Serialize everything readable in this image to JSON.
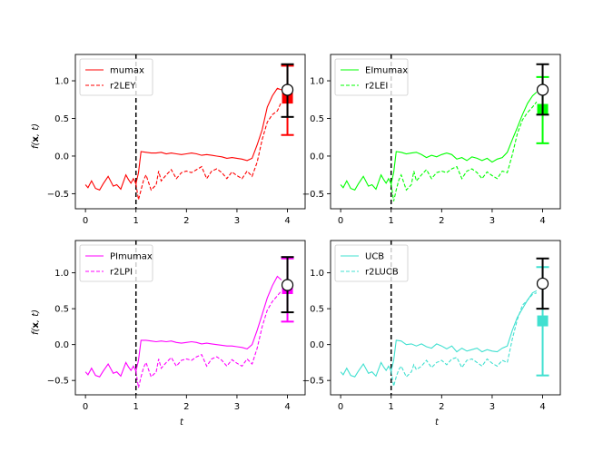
{
  "figure": {
    "ylabel_prefix": "f(",
    "ylabel_bold": "x",
    "ylabel_suffix": ", t)",
    "xlabel": "t"
  },
  "chart_data": [
    {
      "type": "line",
      "color": "#ff0000",
      "xlim": [
        -0.2,
        4.35
      ],
      "ylim": [
        -0.7,
        1.35
      ],
      "xticks": [
        0,
        1,
        2,
        3,
        4
      ],
      "yticks": [
        -0.5,
        0.0,
        0.5,
        1.0
      ],
      "ytick_labels": [
        "−0.5",
        "0.0",
        "0.5",
        "1.0"
      ],
      "vline_x": 1,
      "legend": [
        "mumax",
        "r2LEY"
      ],
      "series": [
        {
          "name": "mumax",
          "style": "solid",
          "x": [
            0,
            0.05,
            0.12,
            0.2,
            0.28,
            0.35,
            0.45,
            0.55,
            0.62,
            0.7,
            0.8,
            0.85,
            0.9,
            0.95,
            1.0,
            1.05,
            1.1,
            1.2,
            1.3,
            1.4,
            1.5,
            1.6,
            1.7,
            1.8,
            1.9,
            2.0,
            2.1,
            2.2,
            2.3,
            2.4,
            2.5,
            2.6,
            2.7,
            2.8,
            2.9,
            3.0,
            3.1,
            3.2,
            3.3,
            3.4,
            3.5,
            3.6,
            3.7,
            3.8,
            3.88
          ],
          "y": [
            -0.38,
            -0.42,
            -0.33,
            -0.43,
            -0.45,
            -0.37,
            -0.27,
            -0.4,
            -0.38,
            -0.44,
            -0.25,
            -0.31,
            -0.36,
            -0.3,
            -0.37,
            -0.22,
            0.06,
            0.05,
            0.04,
            0.04,
            0.05,
            0.03,
            0.04,
            0.03,
            0.02,
            0.03,
            0.04,
            0.03,
            0.01,
            0.02,
            0.01,
            0.0,
            -0.01,
            -0.03,
            -0.02,
            -0.03,
            -0.04,
            -0.06,
            -0.03,
            0.15,
            0.35,
            0.65,
            0.8,
            0.9,
            0.88
          ]
        },
        {
          "name": "r2LEY",
          "style": "dashed",
          "x": [
            1.0,
            1.05,
            1.1,
            1.15,
            1.2,
            1.3,
            1.4,
            1.45,
            1.5,
            1.6,
            1.7,
            1.8,
            1.9,
            2.0,
            2.1,
            2.2,
            2.3,
            2.4,
            2.5,
            2.6,
            2.7,
            2.8,
            2.9,
            3.0,
            3.1,
            3.2,
            3.3,
            3.4,
            3.5,
            3.6,
            3.7,
            3.8,
            3.88
          ],
          "y": [
            -0.37,
            -0.58,
            -0.45,
            -0.32,
            -0.25,
            -0.45,
            -0.38,
            -0.2,
            -0.33,
            -0.25,
            -0.18,
            -0.3,
            -0.22,
            -0.2,
            -0.22,
            -0.18,
            -0.14,
            -0.3,
            -0.2,
            -0.17,
            -0.22,
            -0.3,
            -0.21,
            -0.26,
            -0.3,
            -0.2,
            -0.27,
            -0.08,
            0.22,
            0.45,
            0.55,
            0.6,
            0.72
          ]
        }
      ],
      "errorbar_true": {
        "x": 4,
        "y": 0.88,
        "lower": 0.52,
        "upper": 1.22
      },
      "errorbar_pred": {
        "x": 4,
        "y": 0.77,
        "lower": 0.28,
        "upper": 1.2
      }
    },
    {
      "type": "line",
      "color": "#00ff00",
      "xlim": [
        -0.2,
        4.35
      ],
      "ylim": [
        -0.7,
        1.35
      ],
      "xticks": [
        0,
        1,
        2,
        3,
        4
      ],
      "yticks": [
        -0.5,
        0.0,
        0.5,
        1.0
      ],
      "ytick_labels": [
        "−0.5",
        "0.0",
        "0.5",
        "1.0"
      ],
      "vline_x": 1,
      "legend": [
        "EImumax",
        "r2LEI"
      ],
      "series": [
        {
          "name": "EImumax",
          "style": "solid",
          "x": [
            0,
            0.05,
            0.12,
            0.2,
            0.28,
            0.35,
            0.45,
            0.55,
            0.62,
            0.7,
            0.8,
            0.85,
            0.9,
            0.95,
            1.0,
            1.05,
            1.1,
            1.2,
            1.3,
            1.4,
            1.5,
            1.6,
            1.7,
            1.8,
            1.9,
            2.0,
            2.1,
            2.2,
            2.3,
            2.4,
            2.5,
            2.6,
            2.7,
            2.8,
            2.9,
            3.0,
            3.1,
            3.2,
            3.3,
            3.4,
            3.5,
            3.6,
            3.7,
            3.8,
            3.88
          ],
          "y": [
            -0.38,
            -0.42,
            -0.33,
            -0.43,
            -0.45,
            -0.37,
            -0.27,
            -0.4,
            -0.38,
            -0.44,
            -0.25,
            -0.31,
            -0.36,
            -0.3,
            -0.37,
            -0.22,
            0.06,
            0.05,
            0.03,
            0.04,
            0.05,
            0.02,
            -0.02,
            0.01,
            -0.01,
            0.02,
            0.04,
            0.02,
            -0.04,
            -0.02,
            -0.06,
            -0.01,
            -0.03,
            -0.06,
            -0.03,
            -0.08,
            -0.04,
            -0.02,
            0.05,
            0.22,
            0.38,
            0.55,
            0.7,
            0.8,
            0.85
          ]
        },
        {
          "name": "r2LEI",
          "style": "dashed",
          "x": [
            1.0,
            1.05,
            1.1,
            1.15,
            1.2,
            1.3,
            1.4,
            1.45,
            1.5,
            1.6,
            1.7,
            1.8,
            1.9,
            2.0,
            2.1,
            2.2,
            2.3,
            2.4,
            2.5,
            2.6,
            2.7,
            2.8,
            2.9,
            3.0,
            3.1,
            3.2,
            3.3,
            3.4,
            3.5,
            3.6,
            3.7,
            3.8,
            3.88
          ],
          "y": [
            -0.37,
            -0.6,
            -0.45,
            -0.32,
            -0.25,
            -0.45,
            -0.38,
            -0.2,
            -0.33,
            -0.25,
            -0.18,
            -0.3,
            -0.22,
            -0.2,
            -0.22,
            -0.17,
            -0.14,
            -0.3,
            -0.2,
            -0.17,
            -0.22,
            -0.3,
            -0.21,
            -0.26,
            -0.3,
            -0.2,
            -0.22,
            0.02,
            0.3,
            0.48,
            0.58,
            0.65,
            0.72
          ]
        }
      ],
      "errorbar_true": {
        "x": 4,
        "y": 0.88,
        "lower": 0.55,
        "upper": 1.22
      },
      "errorbar_pred": {
        "x": 4,
        "y": 0.62,
        "lower": 0.17,
        "upper": 1.05
      }
    },
    {
      "type": "line",
      "color": "#ff00ff",
      "xlim": [
        -0.2,
        4.35
      ],
      "ylim": [
        -0.7,
        1.45
      ],
      "xticks": [
        0,
        1,
        2,
        3,
        4
      ],
      "yticks": [
        -0.5,
        0.0,
        0.5,
        1.0
      ],
      "ytick_labels": [
        "−0.5",
        "0.0",
        "0.5",
        "1.0"
      ],
      "vline_x": 1,
      "legend": [
        "PImumax",
        "r2LPI"
      ],
      "series": [
        {
          "name": "PImumax",
          "style": "solid",
          "x": [
            0,
            0.05,
            0.12,
            0.2,
            0.28,
            0.35,
            0.45,
            0.55,
            0.62,
            0.7,
            0.8,
            0.85,
            0.9,
            0.95,
            1.0,
            1.05,
            1.1,
            1.2,
            1.3,
            1.4,
            1.5,
            1.6,
            1.7,
            1.8,
            1.9,
            2.0,
            2.1,
            2.2,
            2.3,
            2.4,
            2.5,
            2.6,
            2.7,
            2.8,
            2.9,
            3.0,
            3.1,
            3.2,
            3.3,
            3.4,
            3.5,
            3.6,
            3.7,
            3.8,
            3.88
          ],
          "y": [
            -0.38,
            -0.42,
            -0.33,
            -0.43,
            -0.45,
            -0.37,
            -0.27,
            -0.4,
            -0.38,
            -0.44,
            -0.25,
            -0.31,
            -0.36,
            -0.3,
            -0.37,
            -0.22,
            0.06,
            0.06,
            0.05,
            0.04,
            0.05,
            0.04,
            0.05,
            0.03,
            0.02,
            0.03,
            0.04,
            0.03,
            0.01,
            0.02,
            0.01,
            0.0,
            -0.01,
            -0.02,
            -0.02,
            -0.03,
            -0.04,
            -0.06,
            0.0,
            0.2,
            0.42,
            0.65,
            0.82,
            0.95,
            0.9
          ]
        },
        {
          "name": "r2LPI",
          "style": "dashed",
          "x": [
            1.0,
            1.05,
            1.1,
            1.15,
            1.2,
            1.3,
            1.4,
            1.45,
            1.5,
            1.6,
            1.7,
            1.8,
            1.9,
            2.0,
            2.1,
            2.2,
            2.3,
            2.4,
            2.5,
            2.6,
            2.7,
            2.8,
            2.9,
            3.0,
            3.1,
            3.2,
            3.3,
            3.4,
            3.5,
            3.6,
            3.7,
            3.8,
            3.88
          ],
          "y": [
            -0.37,
            -0.6,
            -0.45,
            -0.32,
            -0.25,
            -0.45,
            -0.38,
            -0.2,
            -0.33,
            -0.25,
            -0.18,
            -0.3,
            -0.22,
            -0.2,
            -0.22,
            -0.17,
            -0.14,
            -0.3,
            -0.2,
            -0.17,
            -0.22,
            -0.3,
            -0.21,
            -0.26,
            -0.3,
            -0.2,
            -0.27,
            -0.05,
            0.25,
            0.48,
            0.6,
            0.68,
            0.75
          ]
        }
      ],
      "errorbar_true": {
        "x": 4,
        "y": 0.83,
        "lower": 0.45,
        "upper": 1.22
      },
      "errorbar_pred": {
        "x": 4,
        "y": 0.78,
        "lower": 0.32,
        "upper": 1.2
      }
    },
    {
      "type": "line",
      "color": "#40e0d0",
      "xlim": [
        -0.2,
        4.35
      ],
      "ylim": [
        -0.7,
        1.45
      ],
      "xticks": [
        0,
        1,
        2,
        3,
        4
      ],
      "yticks": [
        -0.5,
        0.0,
        0.5,
        1.0
      ],
      "ytick_labels": [
        "−0.5",
        "0.0",
        "0.5",
        "1.0"
      ],
      "vline_x": 1,
      "legend": [
        "UCB",
        "r2LUCB"
      ],
      "series": [
        {
          "name": "UCB",
          "style": "solid",
          "x": [
            0,
            0.05,
            0.12,
            0.2,
            0.28,
            0.35,
            0.45,
            0.55,
            0.62,
            0.7,
            0.8,
            0.85,
            0.9,
            0.95,
            1.0,
            1.05,
            1.1,
            1.2,
            1.3,
            1.4,
            1.5,
            1.6,
            1.7,
            1.8,
            1.9,
            2.0,
            2.1,
            2.2,
            2.3,
            2.4,
            2.5,
            2.6,
            2.7,
            2.8,
            2.9,
            3.0,
            3.1,
            3.2,
            3.3,
            3.4,
            3.5,
            3.6,
            3.7,
            3.8,
            3.88
          ],
          "y": [
            -0.38,
            -0.42,
            -0.33,
            -0.43,
            -0.45,
            -0.37,
            -0.27,
            -0.4,
            -0.38,
            -0.44,
            -0.25,
            -0.31,
            -0.36,
            -0.3,
            -0.37,
            -0.22,
            0.06,
            0.05,
            0.0,
            0.01,
            -0.02,
            0.01,
            -0.03,
            -0.05,
            0.01,
            -0.02,
            -0.06,
            -0.02,
            -0.1,
            -0.05,
            -0.09,
            -0.07,
            -0.05,
            -0.1,
            -0.07,
            -0.09,
            -0.1,
            -0.05,
            -0.02,
            0.2,
            0.38,
            0.5,
            0.62,
            0.72,
            0.75
          ]
        },
        {
          "name": "r2LUCB",
          "style": "dashed",
          "x": [
            1.0,
            1.05,
            1.1,
            1.15,
            1.2,
            1.3,
            1.4,
            1.45,
            1.5,
            1.6,
            1.7,
            1.8,
            1.9,
            2.0,
            2.1,
            2.2,
            2.3,
            2.4,
            2.5,
            2.6,
            2.7,
            2.8,
            2.9,
            3.0,
            3.1,
            3.2,
            3.3,
            3.4,
            3.5,
            3.6,
            3.7,
            3.8,
            3.88
          ],
          "y": [
            -0.37,
            -0.58,
            -0.45,
            -0.35,
            -0.3,
            -0.45,
            -0.38,
            -0.28,
            -0.35,
            -0.3,
            -0.22,
            -0.32,
            -0.25,
            -0.22,
            -0.28,
            -0.2,
            -0.18,
            -0.32,
            -0.22,
            -0.2,
            -0.25,
            -0.3,
            -0.2,
            -0.26,
            -0.3,
            -0.22,
            -0.25,
            0.08,
            0.35,
            0.55,
            0.62,
            0.7,
            0.72
          ]
        }
      ],
      "errorbar_true": {
        "x": 4,
        "y": 0.85,
        "lower": 0.5,
        "upper": 1.2
      },
      "errorbar_pred": {
        "x": 4,
        "y": 0.33,
        "lower": -0.43,
        "upper": 1.08
      }
    }
  ]
}
